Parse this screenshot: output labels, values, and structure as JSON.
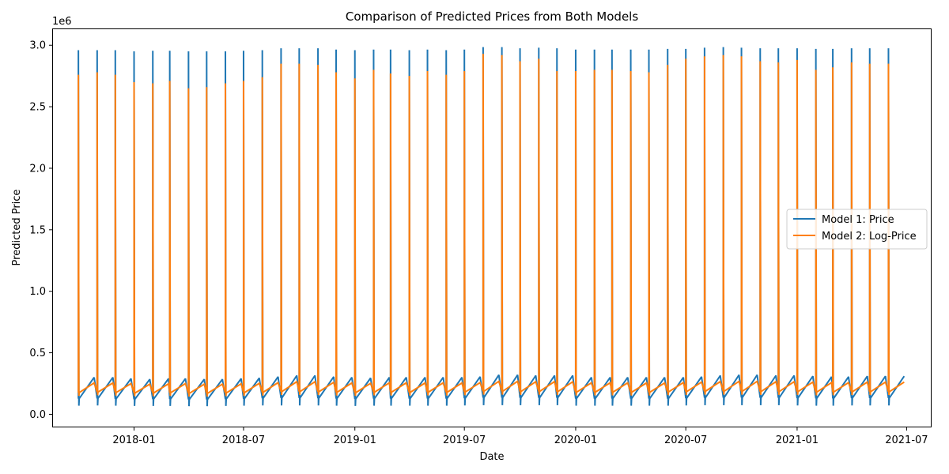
{
  "chart_data": {
    "type": "line",
    "title": "Comparison of Predicted Prices from Both Models",
    "xlabel": "Date",
    "ylabel": "Predicted Price",
    "y_offset_label": "1e6",
    "xlim": [
      "2017-08-20",
      "2021-08-10"
    ],
    "ylim": [
      -100000,
      3130000
    ],
    "x_ticks": [
      "2018-01",
      "2018-07",
      "2019-01",
      "2019-07",
      "2020-01",
      "2020-07",
      "2021-01",
      "2021-07"
    ],
    "y_ticks": [
      0.0,
      0.5,
      1.0,
      1.5,
      2.0,
      2.5,
      3.0
    ],
    "legend_position": "center-right",
    "grid": false,
    "spike_dates": [
      "2017-10-01",
      "2017-11-01",
      "2017-12-01",
      "2018-01-01",
      "2018-02-01",
      "2018-03-01",
      "2018-04-01",
      "2018-05-01",
      "2018-06-01",
      "2018-07-01",
      "2018-08-01",
      "2018-09-01",
      "2018-10-01",
      "2018-11-01",
      "2018-12-01",
      "2019-01-01",
      "2019-02-01",
      "2019-03-01",
      "2019-04-01",
      "2019-05-01",
      "2019-06-01",
      "2019-07-01",
      "2019-08-01",
      "2019-09-01",
      "2019-10-01",
      "2019-11-01",
      "2019-12-01",
      "2020-01-01",
      "2020-02-01",
      "2020-03-01",
      "2020-04-01",
      "2020-05-01",
      "2020-06-01",
      "2020-07-01",
      "2020-08-01",
      "2020-09-01",
      "2020-10-01",
      "2020-11-01",
      "2020-12-01",
      "2021-01-01",
      "2021-02-01",
      "2021-03-01",
      "2021-04-01",
      "2021-05-01",
      "2021-06-01"
    ],
    "series": [
      {
        "name": "Model 1: Price",
        "color": "#1f77b4",
        "peak": [
          2960000,
          2960000,
          2960000,
          2950000,
          2955000,
          2955000,
          2950000,
          2950000,
          2950000,
          2955000,
          2960000,
          2975000,
          2975000,
          2975000,
          2965000,
          2960000,
          2965000,
          2965000,
          2960000,
          2965000,
          2960000,
          2965000,
          2985000,
          2985000,
          2975000,
          2980000,
          2975000,
          2965000,
          2965000,
          2965000,
          2965000,
          2965000,
          2970000,
          2970000,
          2980000,
          2985000,
          2980000,
          2975000,
          2975000,
          2975000,
          2970000,
          2970000,
          2975000,
          2975000,
          2975000
        ],
        "low": [
          70000,
          72000,
          70000,
          68000,
          68000,
          68000,
          66000,
          66000,
          68000,
          70000,
          72000,
          72000,
          72000,
          72000,
          70000,
          68000,
          70000,
          70000,
          70000,
          70000,
          70000,
          72000,
          74000,
          74000,
          74000,
          74000,
          74000,
          70000,
          70000,
          70000,
          70000,
          70000,
          70000,
          72000,
          74000,
          74000,
          74000,
          74000,
          74000,
          72000,
          70000,
          70000,
          72000,
          72000,
          72000
        ],
        "end": [
          300000,
          300000,
          290000,
          285000,
          290000,
          290000,
          285000,
          285000,
          290000,
          295000,
          305000,
          315000,
          315000,
          305000,
          300000,
          295000,
          300000,
          300000,
          300000,
          300000,
          300000,
          305000,
          320000,
          320000,
          315000,
          315000,
          315000,
          300000,
          300000,
          300000,
          300000,
          300000,
          300000,
          305000,
          315000,
          320000,
          320000,
          315000,
          315000,
          310000,
          305000,
          305000,
          310000,
          310000,
          310000
        ]
      },
      {
        "name": "Model 2: Log-Price",
        "color": "#ff7f0e",
        "peak": [
          2760000,
          2780000,
          2760000,
          2700000,
          2690000,
          2710000,
          2650000,
          2660000,
          2690000,
          2710000,
          2740000,
          2850000,
          2850000,
          2840000,
          2780000,
          2730000,
          2800000,
          2770000,
          2750000,
          2790000,
          2760000,
          2790000,
          2930000,
          2920000,
          2870000,
          2890000,
          2790000,
          2790000,
          2800000,
          2800000,
          2790000,
          2780000,
          2840000,
          2890000,
          2910000,
          2920000,
          2910000,
          2870000,
          2860000,
          2880000,
          2800000,
          2820000,
          2860000,
          2850000,
          2850000
        ],
        "low": [
          150000,
          155000,
          152000,
          148000,
          148000,
          150000,
          145000,
          145000,
          148000,
          150000,
          152000,
          158000,
          158000,
          157000,
          153000,
          150000,
          154000,
          153000,
          152000,
          154000,
          153000,
          155000,
          160000,
          160000,
          158000,
          159000,
          157000,
          153000,
          154000,
          154000,
          153000,
          153000,
          156000,
          158000,
          160000,
          160000,
          160000,
          158000,
          158000,
          158000,
          154000,
          155000,
          157000,
          157000,
          157000
        ],
        "end": [
          255000,
          255000,
          250000,
          245000,
          248000,
          250000,
          245000,
          245000,
          248000,
          252000,
          258000,
          265000,
          265000,
          260000,
          255000,
          252000,
          256000,
          256000,
          255000,
          256000,
          255000,
          258000,
          268000,
          268000,
          265000,
          266000,
          264000,
          256000,
          256000,
          256000,
          255000,
          255000,
          258000,
          262000,
          266000,
          268000,
          268000,
          265000,
          265000,
          262000,
          258000,
          258000,
          262000,
          262000,
          262000
        ]
      }
    ]
  }
}
